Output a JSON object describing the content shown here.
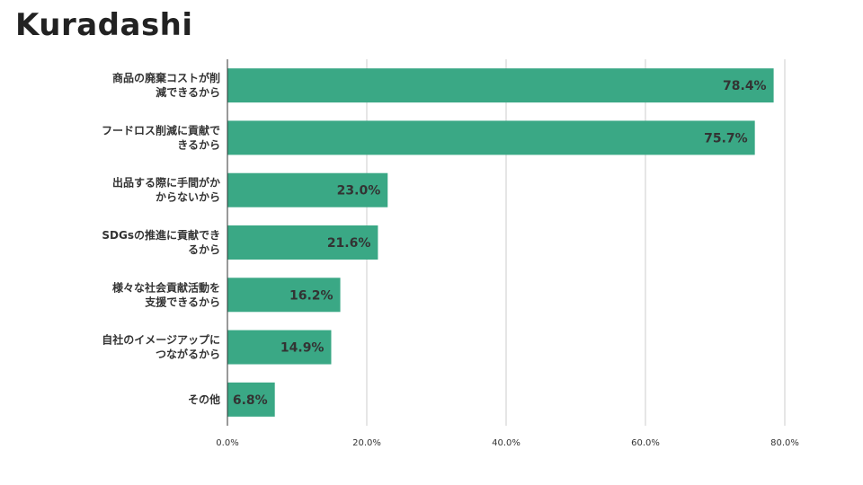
{
  "brand": {
    "logo_text": "Kuradashi"
  },
  "chart_data": {
    "type": "bar",
    "orientation": "horizontal",
    "categories": [
      [
        "商品の廃棄コストが削",
        "減できるから"
      ],
      [
        "フードロス削減に貢献で",
        "きるから"
      ],
      [
        "出品する際に手間がか",
        "からないから"
      ],
      [
        "SDGsの推進に貢献でき",
        "るから"
      ],
      [
        "様々な社会貢献活動を",
        "支援できるから"
      ],
      [
        "自社のイメージアップに",
        "つながるから"
      ],
      [
        "その他"
      ]
    ],
    "values": [
      78.4,
      75.7,
      23.0,
      21.6,
      16.2,
      14.9,
      6.8
    ],
    "value_labels": [
      "78.4%",
      "75.7%",
      "23.0%",
      "21.6%",
      "16.2%",
      "14.9%",
      "6.8%"
    ],
    "x_ticks": [
      0,
      20,
      40,
      60,
      80
    ],
    "x_tick_labels": [
      "0.0%",
      "20.0%",
      "40.0%",
      "60.0%",
      "80.0%"
    ],
    "xlim": [
      0,
      80
    ],
    "grid": true,
    "bar_color": "#3aa885",
    "title": "",
    "xlabel": "",
    "ylabel": ""
  }
}
